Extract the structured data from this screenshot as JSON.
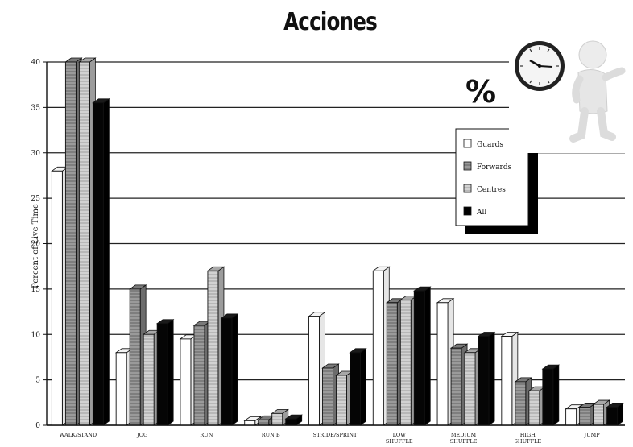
{
  "header": {
    "title": "Acciones",
    "percent_sign": "%"
  },
  "clip_art": {
    "icon": "clock-and-figure-icon"
  },
  "chart_data": {
    "type": "bar",
    "title": "Acciones",
    "xlabel": "",
    "ylabel": "Percent of Live Time",
    "ylim": [
      0,
      40
    ],
    "yticks": [
      0,
      5,
      10,
      15,
      20,
      25,
      30,
      35,
      40
    ],
    "grid": true,
    "legend_position": "top-right",
    "categories": [
      "WALK/STAND",
      "JOG",
      "RUN",
      "RUN B",
      "STRIDE/SPRINT",
      "LOW SHUFFLE",
      "MEDIUM SHUFFLE",
      "HIGH SHUFFLE",
      "JUMP"
    ],
    "series": [
      {
        "name": "Guards",
        "fill": "#ffffff",
        "values": [
          28,
          8,
          9.5,
          0.5,
          12,
          17,
          13.5,
          9.8,
          1.8
        ]
      },
      {
        "name": "Forwards",
        "fill": "#8a8a8a",
        "values": [
          40,
          15,
          11,
          0.6,
          6.3,
          13.5,
          8.5,
          4.8,
          2
        ]
      },
      {
        "name": "Centres",
        "fill": "#b8b8b8",
        "values": [
          40,
          10,
          17,
          1.3,
          5.5,
          13.8,
          8,
          3.8,
          2.3
        ]
      },
      {
        "name": "All",
        "fill": "#000000",
        "values": [
          35.5,
          11.2,
          11.8,
          0.7,
          8,
          14.8,
          9.8,
          6.2,
          2
        ]
      }
    ]
  }
}
